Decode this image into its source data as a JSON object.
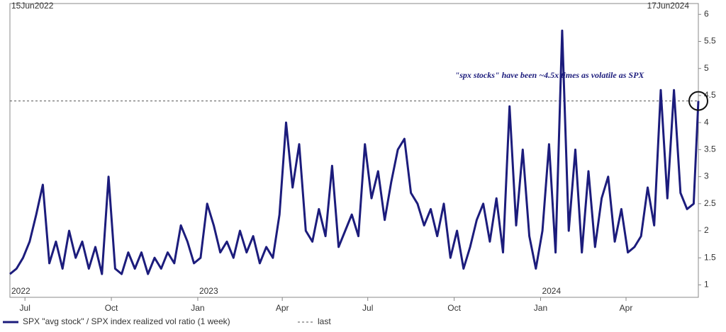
{
  "chart_data": {
    "type": "line",
    "range_labels": [
      "15Jun2022",
      "17Jun2024"
    ],
    "annotation": "\"spx stocks\" have been ~4.5x times as volatile as SPX",
    "x": [
      "2022-06-15",
      "2022-06-22",
      "2022-06-29",
      "2022-07-06",
      "2022-07-13",
      "2022-07-20",
      "2022-07-27",
      "2022-08-03",
      "2022-08-10",
      "2022-08-17",
      "2022-08-24",
      "2022-08-31",
      "2022-09-07",
      "2022-09-14",
      "2022-09-21",
      "2022-09-28",
      "2022-10-05",
      "2022-10-12",
      "2022-10-19",
      "2022-10-26",
      "2022-11-02",
      "2022-11-09",
      "2022-11-16",
      "2022-11-23",
      "2022-11-30",
      "2022-12-07",
      "2022-12-14",
      "2022-12-21",
      "2022-12-28",
      "2023-01-04",
      "2023-01-11",
      "2023-01-18",
      "2023-01-25",
      "2023-02-01",
      "2023-02-08",
      "2023-02-15",
      "2023-02-22",
      "2023-03-01",
      "2023-03-08",
      "2023-03-15",
      "2023-03-22",
      "2023-03-29",
      "2023-04-05",
      "2023-04-12",
      "2023-04-19",
      "2023-04-26",
      "2023-05-03",
      "2023-05-10",
      "2023-05-17",
      "2023-05-24",
      "2023-05-31",
      "2023-06-07",
      "2023-06-14",
      "2023-06-21",
      "2023-06-28",
      "2023-07-05",
      "2023-07-12",
      "2023-07-19",
      "2023-07-26",
      "2023-08-02",
      "2023-08-09",
      "2023-08-16",
      "2023-08-23",
      "2023-08-30",
      "2023-09-06",
      "2023-09-13",
      "2023-09-20",
      "2023-09-27",
      "2023-10-04",
      "2023-10-11",
      "2023-10-18",
      "2023-10-25",
      "2023-11-01",
      "2023-11-08",
      "2023-11-15",
      "2023-11-22",
      "2023-11-29",
      "2023-12-06",
      "2023-12-13",
      "2023-12-20",
      "2023-12-27",
      "2024-01-03",
      "2024-01-10",
      "2024-01-17",
      "2024-01-24",
      "2024-01-31",
      "2024-02-07",
      "2024-02-14",
      "2024-02-21",
      "2024-02-28",
      "2024-03-06",
      "2024-03-13",
      "2024-03-20",
      "2024-03-27",
      "2024-04-03",
      "2024-04-10",
      "2024-04-17",
      "2024-04-24",
      "2024-05-01",
      "2024-05-08",
      "2024-05-15",
      "2024-05-22",
      "2024-05-29",
      "2024-06-05",
      "2024-06-12",
      "2024-06-17"
    ],
    "series": [
      {
        "name": "SPX \"avg stock\" / SPX index realized vol ratio (1 week)",
        "color": "#1c1c7c",
        "values": [
          1.2,
          1.3,
          1.5,
          1.8,
          2.3,
          2.85,
          1.4,
          1.8,
          1.3,
          2.0,
          1.5,
          1.8,
          1.3,
          1.7,
          1.2,
          3.0,
          1.3,
          1.2,
          1.6,
          1.3,
          1.6,
          1.2,
          1.5,
          1.3,
          1.6,
          1.4,
          2.1,
          1.8,
          1.4,
          1.5,
          2.5,
          2.1,
          1.6,
          1.8,
          1.5,
          2.0,
          1.6,
          1.9,
          1.4,
          1.7,
          1.5,
          2.3,
          4.0,
          2.8,
          3.6,
          2.0,
          1.8,
          2.4,
          1.9,
          3.2,
          1.7,
          2.0,
          2.3,
          1.9,
          3.6,
          2.6,
          3.1,
          2.2,
          2.9,
          3.5,
          3.7,
          2.7,
          2.5,
          2.1,
          2.4,
          1.9,
          2.5,
          1.5,
          2.0,
          1.3,
          1.7,
          2.2,
          2.5,
          1.8,
          2.6,
          1.6,
          4.3,
          2.1,
          3.5,
          1.9,
          1.3,
          2.0,
          3.6,
          1.6,
          5.7,
          2.0,
          3.5,
          1.6,
          3.1,
          1.7,
          2.6,
          3.0,
          1.8,
          2.4,
          1.6,
          1.7,
          1.9,
          2.8,
          2.1,
          4.6,
          2.6,
          4.6,
          2.7,
          2.4,
          2.5,
          4.4
        ]
      }
    ],
    "reference_line": {
      "value": 4.4,
      "label": "last"
    },
    "xlim": [
      "2022-06-15",
      "2024-06-17"
    ],
    "xticks": [
      {
        "value": "2022-07-01",
        "label": "Jul"
      },
      {
        "value": "2022-10-01",
        "label": "Oct"
      },
      {
        "value": "2023-01-01",
        "label": "Jan"
      },
      {
        "value": "2023-04-01",
        "label": "Apr"
      },
      {
        "value": "2023-07-01",
        "label": "Jul"
      },
      {
        "value": "2023-10-01",
        "label": "Oct"
      },
      {
        "value": "2024-01-01",
        "label": "Jan"
      },
      {
        "value": "2024-04-01",
        "label": "Apr"
      }
    ],
    "year_labels": [
      {
        "value": "2022-06-15",
        "label": "2022"
      },
      {
        "value": "2023-01-01",
        "label": "2023"
      },
      {
        "value": "2024-01-01",
        "label": "2024"
      }
    ],
    "ylim": [
      0.77,
      6.2
    ],
    "yticks": [
      1,
      1.5,
      2,
      2.5,
      3,
      3.5,
      4,
      4.5,
      5,
      5.5,
      6
    ]
  }
}
